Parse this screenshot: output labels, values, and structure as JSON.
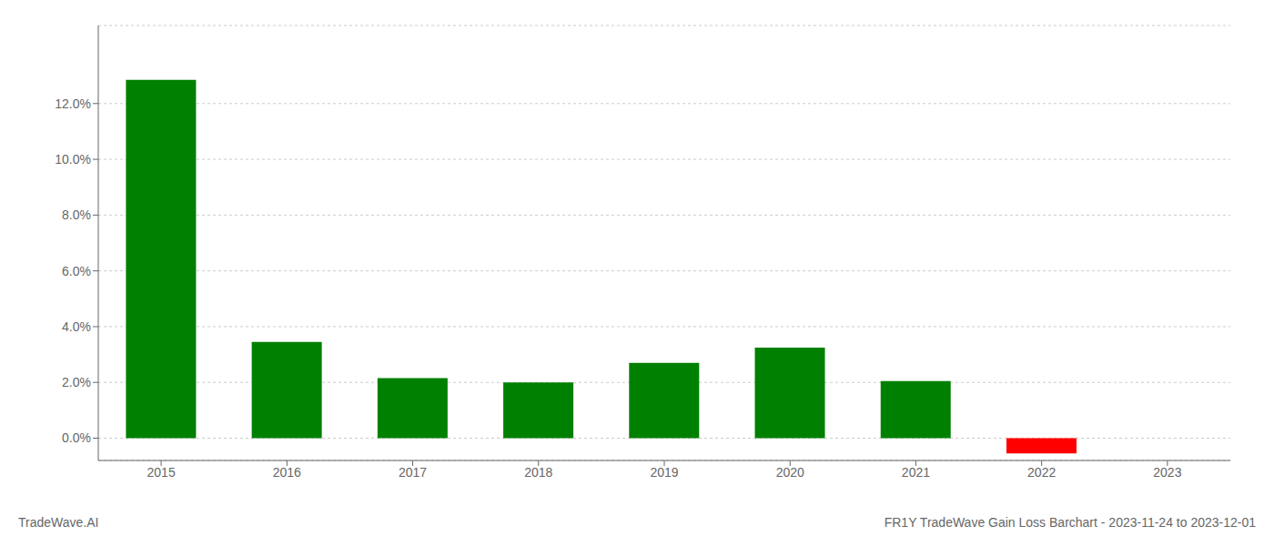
{
  "chart_data": {
    "type": "bar",
    "title": "FR1Y TradeWave Gain Loss Barchart - 2023-11-24 to 2023-12-01",
    "annotations": [
      "TradeWave.AI"
    ],
    "categories": [
      "2015",
      "2016",
      "2017",
      "2018",
      "2019",
      "2020",
      "2021",
      "2022",
      "2023"
    ],
    "values": [
      0.1285,
      0.0345,
      0.0215,
      0.02,
      0.027,
      0.0325,
      0.0205,
      -0.0055,
      0.0
    ],
    "colors": [
      "#008000",
      "#008000",
      "#008000",
      "#008000",
      "#008000",
      "#008000",
      "#008000",
      "#ff0000",
      "#008000"
    ],
    "ylim": [
      -0.008,
      0.148
    ],
    "yticks": [
      {
        "value": 0.0,
        "label": "0.0%"
      },
      {
        "value": 0.02,
        "label": "2.0%"
      },
      {
        "value": 0.04,
        "label": "4.0%"
      },
      {
        "value": 0.06,
        "label": "6.0%"
      },
      {
        "value": 0.08,
        "label": "8.0%"
      },
      {
        "value": 0.1,
        "label": "10.0%"
      },
      {
        "value": 0.12,
        "label": "12.0%"
      }
    ],
    "grid": true
  }
}
